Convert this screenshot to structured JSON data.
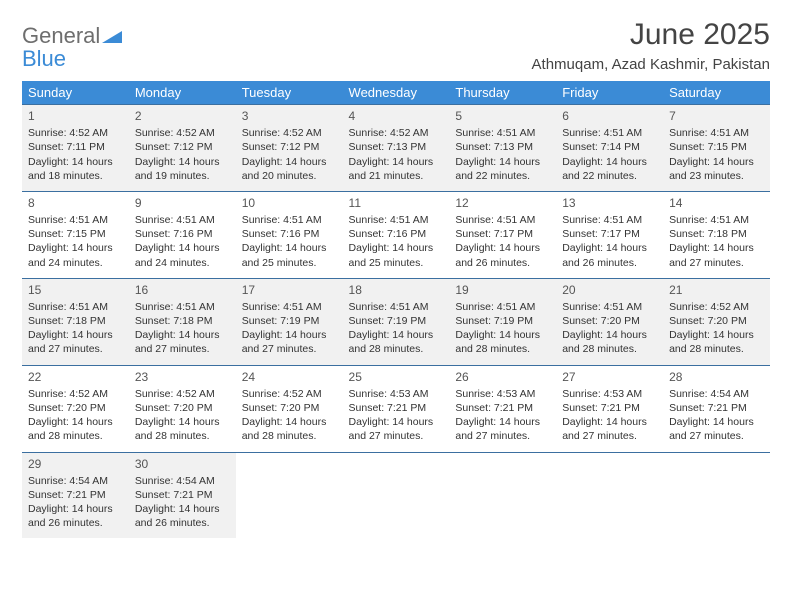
{
  "logo": {
    "text_top": "General",
    "text_bottom": "Blue"
  },
  "title": "June 2025",
  "location": "Athmuqam, Azad Kashmir, Pakistan",
  "colors": {
    "header_bg": "#3b8bd6",
    "header_text": "#ffffff",
    "row_border": "#3b6fa0",
    "alt_row_bg": "#f1f1f1",
    "body_text": "#333333",
    "logo_gray": "#6e6e6e",
    "logo_blue": "#3b8bd6"
  },
  "day_headers": [
    "Sunday",
    "Monday",
    "Tuesday",
    "Wednesday",
    "Thursday",
    "Friday",
    "Saturday"
  ],
  "weeks": [
    {
      "alt": true,
      "days": [
        {
          "n": "1",
          "sr": "Sunrise: 4:52 AM",
          "ss": "Sunset: 7:11 PM",
          "d1": "Daylight: 14 hours",
          "d2": "and 18 minutes."
        },
        {
          "n": "2",
          "sr": "Sunrise: 4:52 AM",
          "ss": "Sunset: 7:12 PM",
          "d1": "Daylight: 14 hours",
          "d2": "and 19 minutes."
        },
        {
          "n": "3",
          "sr": "Sunrise: 4:52 AM",
          "ss": "Sunset: 7:12 PM",
          "d1": "Daylight: 14 hours",
          "d2": "and 20 minutes."
        },
        {
          "n": "4",
          "sr": "Sunrise: 4:52 AM",
          "ss": "Sunset: 7:13 PM",
          "d1": "Daylight: 14 hours",
          "d2": "and 21 minutes."
        },
        {
          "n": "5",
          "sr": "Sunrise: 4:51 AM",
          "ss": "Sunset: 7:13 PM",
          "d1": "Daylight: 14 hours",
          "d2": "and 22 minutes."
        },
        {
          "n": "6",
          "sr": "Sunrise: 4:51 AM",
          "ss": "Sunset: 7:14 PM",
          "d1": "Daylight: 14 hours",
          "d2": "and 22 minutes."
        },
        {
          "n": "7",
          "sr": "Sunrise: 4:51 AM",
          "ss": "Sunset: 7:15 PM",
          "d1": "Daylight: 14 hours",
          "d2": "and 23 minutes."
        }
      ]
    },
    {
      "alt": false,
      "days": [
        {
          "n": "8",
          "sr": "Sunrise: 4:51 AM",
          "ss": "Sunset: 7:15 PM",
          "d1": "Daylight: 14 hours",
          "d2": "and 24 minutes."
        },
        {
          "n": "9",
          "sr": "Sunrise: 4:51 AM",
          "ss": "Sunset: 7:16 PM",
          "d1": "Daylight: 14 hours",
          "d2": "and 24 minutes."
        },
        {
          "n": "10",
          "sr": "Sunrise: 4:51 AM",
          "ss": "Sunset: 7:16 PM",
          "d1": "Daylight: 14 hours",
          "d2": "and 25 minutes."
        },
        {
          "n": "11",
          "sr": "Sunrise: 4:51 AM",
          "ss": "Sunset: 7:16 PM",
          "d1": "Daylight: 14 hours",
          "d2": "and 25 minutes."
        },
        {
          "n": "12",
          "sr": "Sunrise: 4:51 AM",
          "ss": "Sunset: 7:17 PM",
          "d1": "Daylight: 14 hours",
          "d2": "and 26 minutes."
        },
        {
          "n": "13",
          "sr": "Sunrise: 4:51 AM",
          "ss": "Sunset: 7:17 PM",
          "d1": "Daylight: 14 hours",
          "d2": "and 26 minutes."
        },
        {
          "n": "14",
          "sr": "Sunrise: 4:51 AM",
          "ss": "Sunset: 7:18 PM",
          "d1": "Daylight: 14 hours",
          "d2": "and 27 minutes."
        }
      ]
    },
    {
      "alt": true,
      "days": [
        {
          "n": "15",
          "sr": "Sunrise: 4:51 AM",
          "ss": "Sunset: 7:18 PM",
          "d1": "Daylight: 14 hours",
          "d2": "and 27 minutes."
        },
        {
          "n": "16",
          "sr": "Sunrise: 4:51 AM",
          "ss": "Sunset: 7:18 PM",
          "d1": "Daylight: 14 hours",
          "d2": "and 27 minutes."
        },
        {
          "n": "17",
          "sr": "Sunrise: 4:51 AM",
          "ss": "Sunset: 7:19 PM",
          "d1": "Daylight: 14 hours",
          "d2": "and 27 minutes."
        },
        {
          "n": "18",
          "sr": "Sunrise: 4:51 AM",
          "ss": "Sunset: 7:19 PM",
          "d1": "Daylight: 14 hours",
          "d2": "and 28 minutes."
        },
        {
          "n": "19",
          "sr": "Sunrise: 4:51 AM",
          "ss": "Sunset: 7:19 PM",
          "d1": "Daylight: 14 hours",
          "d2": "and 28 minutes."
        },
        {
          "n": "20",
          "sr": "Sunrise: 4:51 AM",
          "ss": "Sunset: 7:20 PM",
          "d1": "Daylight: 14 hours",
          "d2": "and 28 minutes."
        },
        {
          "n": "21",
          "sr": "Sunrise: 4:52 AM",
          "ss": "Sunset: 7:20 PM",
          "d1": "Daylight: 14 hours",
          "d2": "and 28 minutes."
        }
      ]
    },
    {
      "alt": false,
      "days": [
        {
          "n": "22",
          "sr": "Sunrise: 4:52 AM",
          "ss": "Sunset: 7:20 PM",
          "d1": "Daylight: 14 hours",
          "d2": "and 28 minutes."
        },
        {
          "n": "23",
          "sr": "Sunrise: 4:52 AM",
          "ss": "Sunset: 7:20 PM",
          "d1": "Daylight: 14 hours",
          "d2": "and 28 minutes."
        },
        {
          "n": "24",
          "sr": "Sunrise: 4:52 AM",
          "ss": "Sunset: 7:20 PM",
          "d1": "Daylight: 14 hours",
          "d2": "and 28 minutes."
        },
        {
          "n": "25",
          "sr": "Sunrise: 4:53 AM",
          "ss": "Sunset: 7:21 PM",
          "d1": "Daylight: 14 hours",
          "d2": "and 27 minutes."
        },
        {
          "n": "26",
          "sr": "Sunrise: 4:53 AM",
          "ss": "Sunset: 7:21 PM",
          "d1": "Daylight: 14 hours",
          "d2": "and 27 minutes."
        },
        {
          "n": "27",
          "sr": "Sunrise: 4:53 AM",
          "ss": "Sunset: 7:21 PM",
          "d1": "Daylight: 14 hours",
          "d2": "and 27 minutes."
        },
        {
          "n": "28",
          "sr": "Sunrise: 4:54 AM",
          "ss": "Sunset: 7:21 PM",
          "d1": "Daylight: 14 hours",
          "d2": "and 27 minutes."
        }
      ]
    },
    {
      "alt": true,
      "days": [
        {
          "n": "29",
          "sr": "Sunrise: 4:54 AM",
          "ss": "Sunset: 7:21 PM",
          "d1": "Daylight: 14 hours",
          "d2": "and 26 minutes."
        },
        {
          "n": "30",
          "sr": "Sunrise: 4:54 AM",
          "ss": "Sunset: 7:21 PM",
          "d1": "Daylight: 14 hours",
          "d2": "and 26 minutes."
        },
        null,
        null,
        null,
        null,
        null
      ]
    }
  ]
}
